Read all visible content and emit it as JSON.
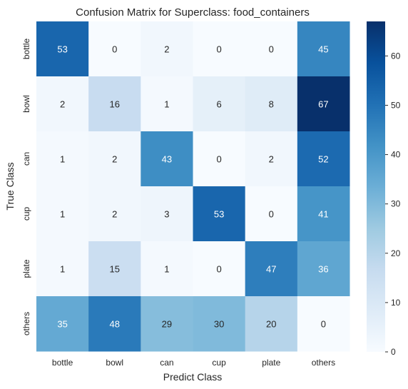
{
  "chart_data": {
    "type": "heatmap",
    "title": "Confusion Matrix for Superclass: food_containers",
    "xlabel": "Predict Class",
    "ylabel": "True Class",
    "x_categories": [
      "bottle",
      "bowl",
      "can",
      "cup",
      "plate",
      "others"
    ],
    "y_categories": [
      "bottle",
      "bowl",
      "can",
      "cup",
      "plate",
      "others"
    ],
    "values": [
      [
        53,
        0,
        2,
        0,
        0,
        45
      ],
      [
        2,
        16,
        1,
        6,
        8,
        67
      ],
      [
        1,
        2,
        43,
        0,
        2,
        52
      ],
      [
        1,
        2,
        3,
        53,
        0,
        41
      ],
      [
        1,
        15,
        1,
        0,
        47,
        36
      ],
      [
        35,
        48,
        29,
        30,
        20,
        0
      ]
    ],
    "colorbar": {
      "colormap": "Blues",
      "vmin": 0,
      "vmax": 67,
      "ticks": [
        "0",
        "10",
        "20",
        "30",
        "40",
        "50",
        "60"
      ]
    },
    "grid": false
  }
}
